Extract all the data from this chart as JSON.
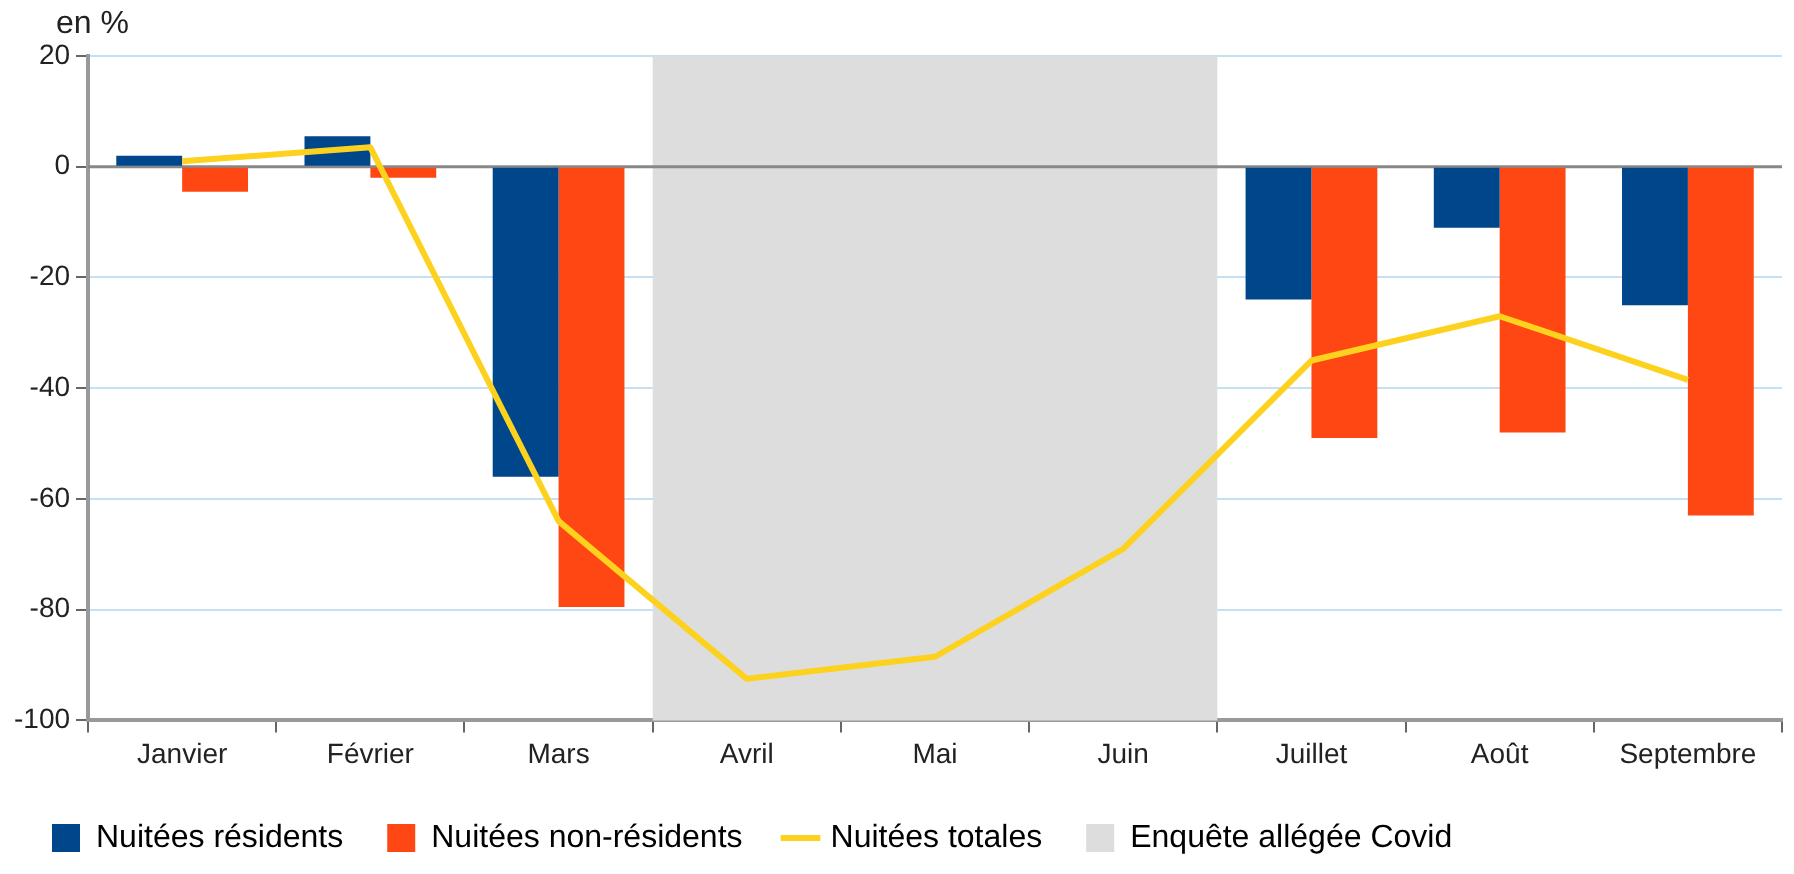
{
  "chart_data": {
    "type": "bar",
    "ylabel": "en %",
    "categories": [
      "Janvier",
      "Février",
      "Mars",
      "Avril",
      "Mai",
      "Juin",
      "Juillet",
      "Août",
      "Septembre"
    ],
    "series": [
      {
        "name": "Nuitées résidents",
        "color": "#00468b",
        "values": [
          2,
          5.5,
          -56,
          null,
          null,
          null,
          -24,
          -11,
          -25
        ]
      },
      {
        "name": "Nuitées non-résidents",
        "color": "#ff4713",
        "values": [
          -4.5,
          -2,
          -79.5,
          null,
          null,
          null,
          -49,
          -48,
          -63
        ]
      },
      {
        "name": "Nuitées totales",
        "type": "line",
        "color": "#fdd21f",
        "values": [
          1,
          3.5,
          -64,
          -92.5,
          -88.5,
          -69,
          -35,
          -27,
          -38.5
        ]
      }
    ],
    "bands": [
      {
        "axis": "x",
        "from": "Avril",
        "to": "Juin",
        "label": "Enquête allégée Covid",
        "color": "#dddddd"
      }
    ],
    "ylim": [
      -100,
      20
    ],
    "yticks": [
      -100,
      -80,
      -60,
      -40,
      -20,
      0,
      20
    ],
    "grid": "y",
    "legend": "bottom"
  }
}
